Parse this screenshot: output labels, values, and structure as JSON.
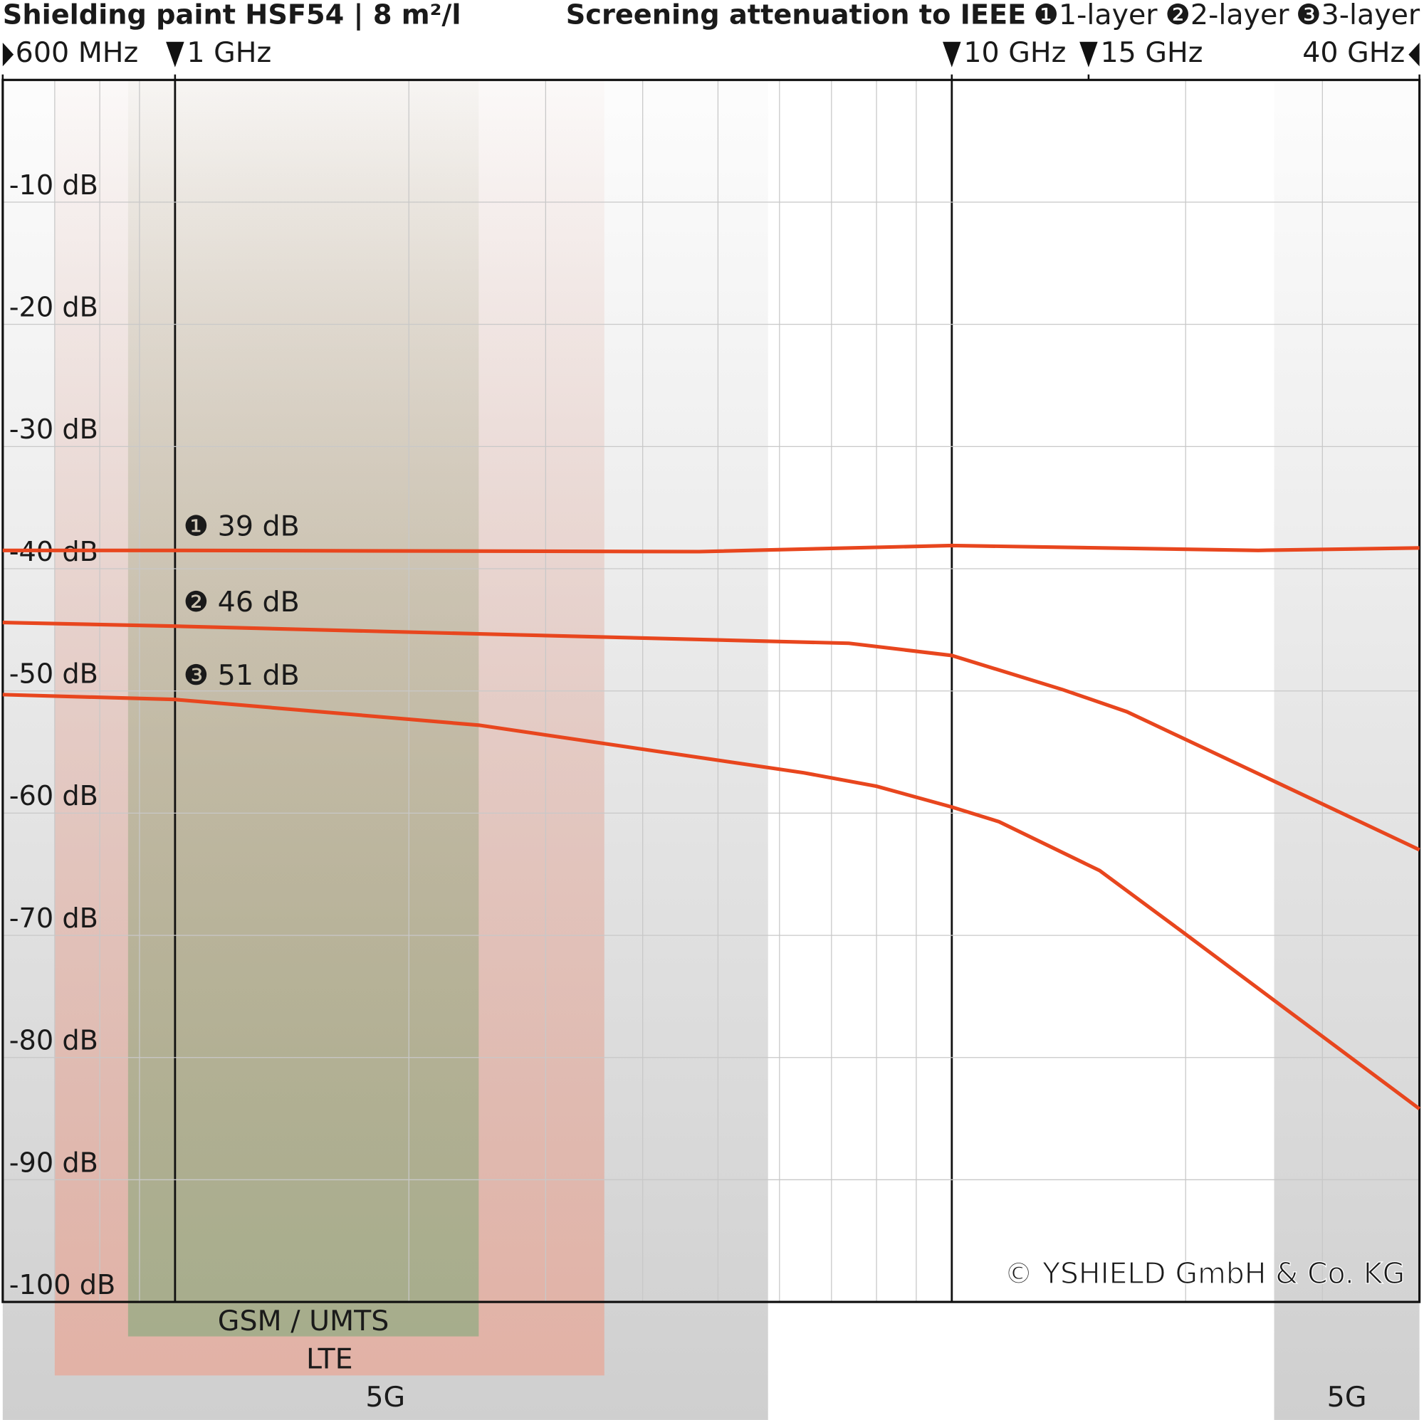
{
  "chart_data": {
    "type": "line",
    "title": "Shielding paint HSF54 | 8 m²/l",
    "subtitle": "Screening attenuation to IEEE",
    "x_scale": "log",
    "xlim": [
      0.6,
      40
    ],
    "xticks": [
      {
        "value": 0.6,
        "label": "600 MHz"
      },
      {
        "value": 1,
        "label": "1 GHz"
      },
      {
        "value": 10,
        "label": "10 GHz"
      },
      {
        "value": 15,
        "label": "15 GHz"
      },
      {
        "value": 40,
        "label": "40 GHz"
      }
    ],
    "ylim": [
      -100,
      0
    ],
    "yticks": [
      {
        "value": -10,
        "label": "-10 dB"
      },
      {
        "value": -20,
        "label": "-20 dB"
      },
      {
        "value": -30,
        "label": "-30 dB"
      },
      {
        "value": -40,
        "label": "-40 dB"
      },
      {
        "value": -50,
        "label": "-50 dB"
      },
      {
        "value": -60,
        "label": "-60 dB"
      },
      {
        "value": -70,
        "label": "-70 dB"
      },
      {
        "value": -80,
        "label": "-80 dB"
      },
      {
        "value": -90,
        "label": "-90 dB"
      },
      {
        "value": -100,
        "label": "-100 dB"
      }
    ],
    "grid": true,
    "minor_grid": true,
    "series": [
      {
        "name": "1-layer",
        "marker": "❶",
        "label": "39 dB",
        "color": "#e8461e",
        "x": [
          0.6,
          1,
          4.73,
          10,
          24.8,
          40
        ],
        "values": [
          -38.5,
          -38.5,
          -38.6,
          -38.1,
          -38.5,
          -38.3
        ]
      },
      {
        "name": "2-layer",
        "marker": "❷",
        "label": "46 dB",
        "color": "#e8461e",
        "x": [
          0.6,
          1,
          7.37,
          10,
          13.9,
          16.8,
          40
        ],
        "values": [
          -44.4,
          -44.7,
          -46.1,
          -47.1,
          -49.9,
          -51.7,
          -63.0
        ]
      },
      {
        "name": "3-layer",
        "marker": "❸",
        "label": "51 dB",
        "color": "#e8461e",
        "x": [
          0.6,
          1,
          2.46,
          6.45,
          8.0,
          10,
          11.5,
          15.5,
          19.7,
          40
        ],
        "values": [
          -50.3,
          -50.7,
          -52.8,
          -56.7,
          -57.8,
          -59.5,
          -60.7,
          -64.7,
          -69.6,
          -84.2
        ]
      }
    ],
    "bands": [
      {
        "label": "5G",
        "from": 0.6,
        "to": 5.8,
        "color": "#cfcfcf"
      },
      {
        "label": "LTE",
        "from": 0.7,
        "to": 3.57,
        "color": "#e2b2a6"
      },
      {
        "label": "GSM / UMTS",
        "from": 0.87,
        "to": 2.46,
        "color": "#a6ad8c"
      },
      {
        "label": "5G",
        "from": 26,
        "to": 40,
        "color": "#cfcfcf"
      }
    ],
    "watermark": "© YSHIELD GmbH & Co. KG"
  }
}
